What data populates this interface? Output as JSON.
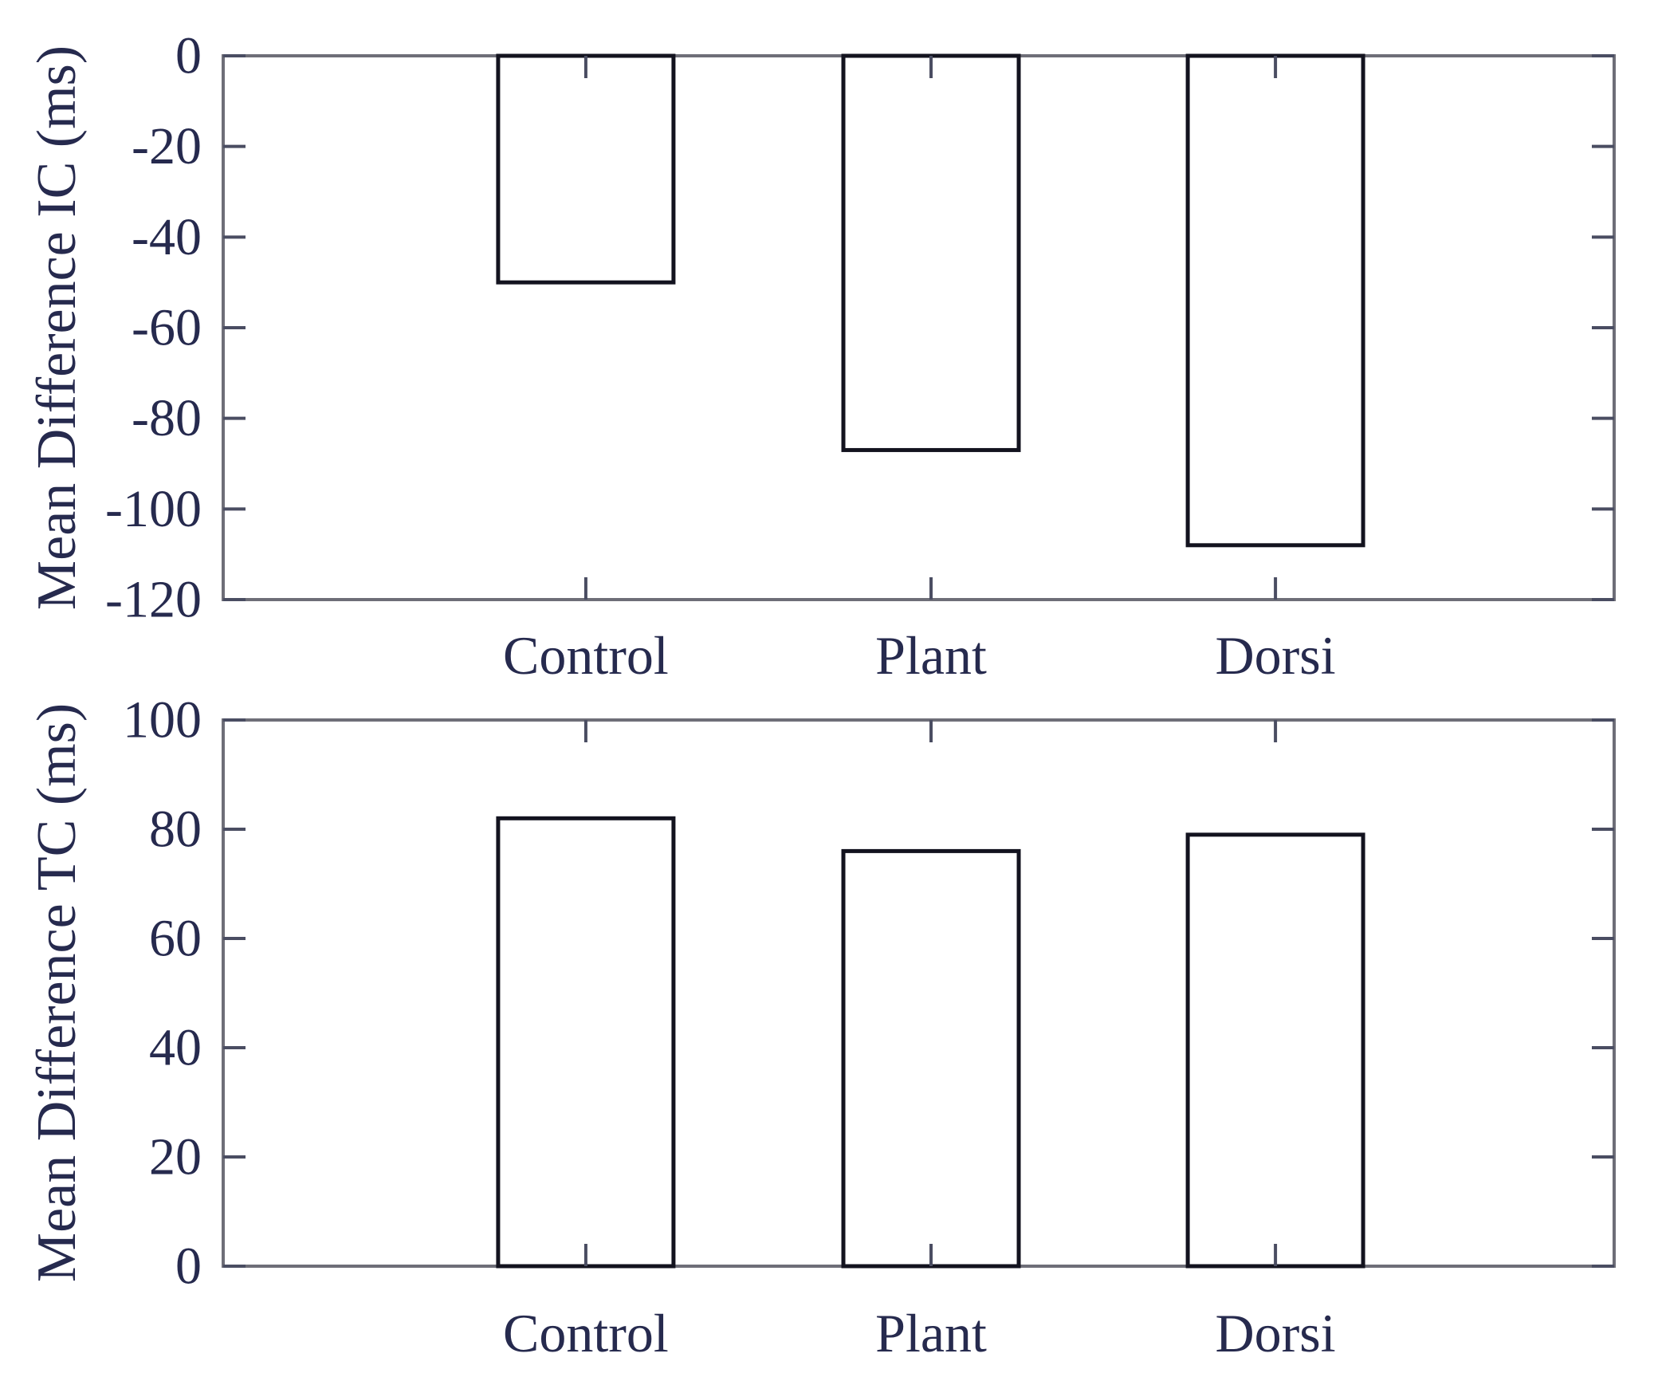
{
  "figure": {
    "background": "#ffffff",
    "text_color": "#262a4e",
    "spine_color": "#6e6e78",
    "tick_color": "#4a4d62",
    "bar_fill": "#ffffff",
    "bar_stroke": "#13131f"
  },
  "chart_data": [
    {
      "type": "bar",
      "title": "",
      "ylabel": "Mean Difference IC (ms)",
      "xlabel": "",
      "categories": [
        "Control",
        "Plant",
        "Dorsi"
      ],
      "values": [
        -50,
        -87,
        -108
      ],
      "ylim": [
        -120,
        0
      ],
      "yticks": [
        0,
        -20,
        -40,
        -60,
        -80,
        -100,
        -120
      ],
      "grid": "off",
      "legend": "none",
      "bar_color": "white-filled-black-outline"
    },
    {
      "type": "bar",
      "title": "",
      "ylabel": "Mean Difference TC (ms)",
      "xlabel": "",
      "categories": [
        "Control",
        "Plant",
        "Dorsi"
      ],
      "values": [
        82,
        76,
        79
      ],
      "ylim": [
        0,
        100
      ],
      "yticks": [
        100,
        80,
        60,
        40,
        20,
        0
      ],
      "grid": "off",
      "legend": "none",
      "bar_color": "white-filled-black-outline"
    }
  ]
}
